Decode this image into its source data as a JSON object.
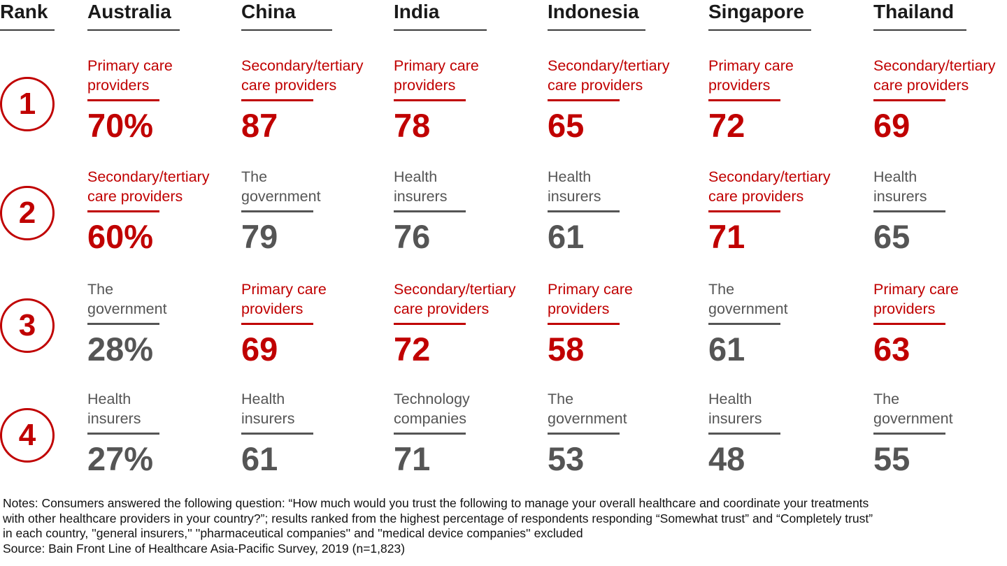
{
  "colors": {
    "highlight": "#c00000",
    "neutral": "#555555",
    "header": "#1a1a1a"
  },
  "header": {
    "rank": "Rank",
    "countries": [
      "Australia",
      "China",
      "India",
      "Indonesia",
      "Singapore",
      "Thailand"
    ]
  },
  "ranks": [
    "1",
    "2",
    "3",
    "4"
  ],
  "chart_data": {
    "type": "table",
    "columns": [
      "Australia",
      "China",
      "India",
      "Indonesia",
      "Singapore",
      "Thailand"
    ],
    "rows": [
      [
        {
          "line1": "Primary care",
          "line2": "providers",
          "value": "70%",
          "highlight": true
        },
        {
          "line1": "Secondary/tertiary",
          "line2": "care providers",
          "value": "87",
          "highlight": true
        },
        {
          "line1": "Primary care",
          "line2": "providers",
          "value": "78",
          "highlight": true
        },
        {
          "line1": "Secondary/tertiary",
          "line2": "care providers",
          "value": "65",
          "highlight": true
        },
        {
          "line1": "Primary care",
          "line2": "providers",
          "value": "72",
          "highlight": true
        },
        {
          "line1": "Secondary/tertiary",
          "line2": "care providers",
          "value": "69",
          "highlight": true
        }
      ],
      [
        {
          "line1": "Secondary/tertiary",
          "line2": "care providers",
          "value": "60%",
          "highlight": true
        },
        {
          "line1": "The",
          "line2": "government",
          "value": "79",
          "highlight": false
        },
        {
          "line1": "Health",
          "line2": "insurers",
          "value": "76",
          "highlight": false
        },
        {
          "line1": "Health",
          "line2": "insurers",
          "value": "61",
          "highlight": false
        },
        {
          "line1": "Secondary/tertiary",
          "line2": "care providers",
          "value": "71",
          "highlight": true
        },
        {
          "line1": "Health",
          "line2": "insurers",
          "value": "65",
          "highlight": false
        }
      ],
      [
        {
          "line1": "The",
          "line2": "government",
          "value": "28%",
          "highlight": false
        },
        {
          "line1": "Primary care",
          "line2": "providers",
          "value": "69",
          "highlight": true
        },
        {
          "line1": "Secondary/tertiary",
          "line2": "care providers",
          "value": "72",
          "highlight": true
        },
        {
          "line1": "Primary care",
          "line2": "providers",
          "value": "58",
          "highlight": true
        },
        {
          "line1": "The",
          "line2": "government",
          "value": "61",
          "highlight": false
        },
        {
          "line1": "Primary care",
          "line2": "providers",
          "value": "63",
          "highlight": true
        }
      ],
      [
        {
          "line1": "Health",
          "line2": "insurers",
          "value": "27%",
          "highlight": false
        },
        {
          "line1": "Health",
          "line2": "insurers",
          "value": "61",
          "highlight": false
        },
        {
          "line1": "Technology",
          "line2": "companies",
          "value": "71",
          "highlight": false
        },
        {
          "line1": "The",
          "line2": "government",
          "value": "53",
          "highlight": false
        },
        {
          "line1": "Health",
          "line2": "insurers",
          "value": "48",
          "highlight": false
        },
        {
          "line1": "The",
          "line2": "government",
          "value": "55",
          "highlight": false
        }
      ]
    ]
  },
  "notes": {
    "line1": "Notes: Consumers answered the following question: “How much would you trust the following to manage your overall healthcare and coordinate your treatments",
    "line2": "with other healthcare providers in your country?”; results ranked from the highest percentage of respondents responding “Somewhat trust” and “Completely trust”",
    "line3": "in each country, ''general insurers,'' ''pharmaceutical companies'' and ''medical device companies'' excluded",
    "source": "Source: Bain Front Line of Healthcare Asia-Pacific Survey, 2019 (n=1,823)"
  }
}
